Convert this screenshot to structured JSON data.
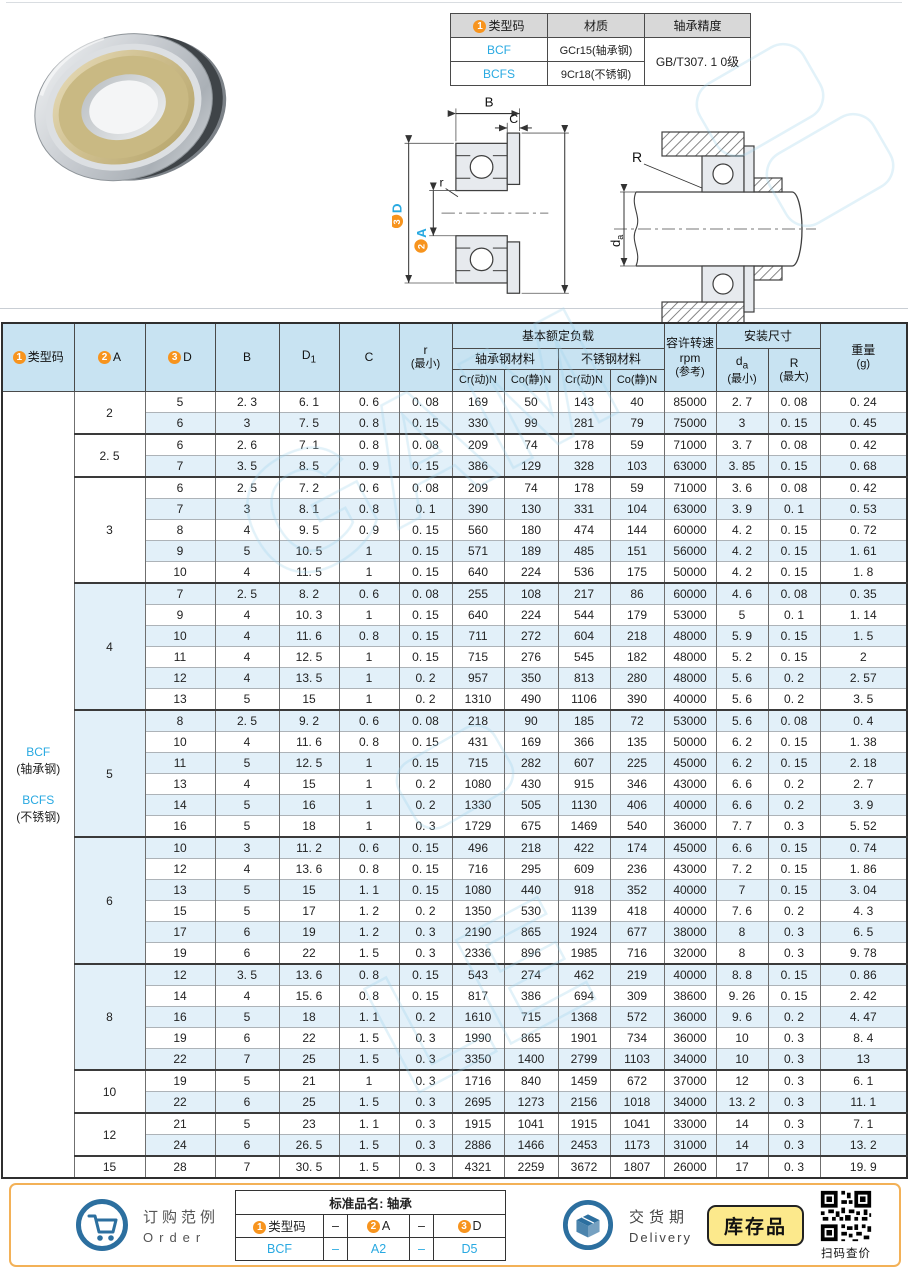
{
  "colors": {
    "accent_blue": "#29a9e1",
    "circle_orange": "#f7941e",
    "table_header_bg": "#c8e3f2",
    "row_alt_bg": "#e2f0f9",
    "footer_border": "#f3b157",
    "badge_bg": "#fce98c",
    "icon_blue": "#2c6f9f"
  },
  "spec_table": {
    "header": {
      "type_num": "1",
      "type_label": "类型码",
      "material_label": "材质",
      "precision_label": "轴承精度"
    },
    "rows": [
      {
        "code": "BCF",
        "material": "GCr15(轴承钢)"
      },
      {
        "code": "BCFS",
        "material": "9Cr18(不锈钢)"
      }
    ],
    "precision": "GB/T307. 1 0级"
  },
  "diagrams": {
    "left": {
      "b": "B",
      "c": "C",
      "r": "r",
      "d_num": "3",
      "d_label": "D",
      "a_num": "2",
      "a_label": "A",
      "d1_base": "D",
      "d1_sub": "1"
    },
    "right": {
      "R": "R",
      "da_base": "d",
      "da_sub": "a"
    }
  },
  "main_table": {
    "header": {
      "type_code": {
        "num": "1",
        "label": "类型码"
      },
      "a": {
        "num": "2",
        "label": "A"
      },
      "d": {
        "num": "3",
        "label": "D"
      },
      "b": "B",
      "d1": {
        "base": "D",
        "sub": "1"
      },
      "c": "C",
      "r": {
        "line1": "r",
        "line2": "(最小)"
      },
      "load_group": "基本额定负载",
      "steel": "轴承钢材料",
      "stainless": "不锈钢材料",
      "cr": "Cr(动)N",
      "co": "Co(静)N",
      "rpm": {
        "line1": "容许转速",
        "line2": "rpm",
        "line3": "(参考)"
      },
      "install": "安装尺寸",
      "da": {
        "base": "d",
        "sub": "a",
        "line2": "(最小)"
      },
      "R": {
        "line1": "R",
        "line2": "(最大)"
      },
      "weight": {
        "line1": "重量",
        "line2": "(g)"
      }
    },
    "type_codes": [
      {
        "code": "BCF",
        "material": "(轴承钢)"
      },
      {
        "code": "BCFS",
        "material": "(不锈钢)"
      }
    ],
    "groups": [
      {
        "a": "2",
        "rows": [
          [
            "5",
            "2. 3",
            "6. 1",
            "0. 6",
            "0. 08",
            "169",
            "50",
            "143",
            "40",
            "85000",
            "2. 7",
            "0. 08",
            "0. 24"
          ],
          [
            "6",
            "3",
            "7. 5",
            "0. 8",
            "0. 15",
            "330",
            "99",
            "281",
            "79",
            "75000",
            "3",
            "0. 15",
            "0. 45"
          ]
        ]
      },
      {
        "a": "2. 5",
        "rows": [
          [
            "6",
            "2. 6",
            "7. 1",
            "0. 8",
            "0. 08",
            "209",
            "74",
            "178",
            "59",
            "71000",
            "3. 7",
            "0. 08",
            "0. 42"
          ],
          [
            "7",
            "3. 5",
            "8. 5",
            "0. 9",
            "0. 15",
            "386",
            "129",
            "328",
            "103",
            "63000",
            "3. 85",
            "0. 15",
            "0. 68"
          ]
        ]
      },
      {
        "a": "3",
        "rows": [
          [
            "6",
            "2. 5",
            "7. 2",
            "0. 6",
            "0. 08",
            "209",
            "74",
            "178",
            "59",
            "71000",
            "3. 6",
            "0. 08",
            "0. 42"
          ],
          [
            "7",
            "3",
            "8. 1",
            "0. 8",
            "0. 1",
            "390",
            "130",
            "331",
            "104",
            "63000",
            "3. 9",
            "0. 1",
            "0. 53"
          ],
          [
            "8",
            "4",
            "9. 5",
            "0. 9",
            "0. 15",
            "560",
            "180",
            "474",
            "144",
            "60000",
            "4. 2",
            "0. 15",
            "0. 72"
          ],
          [
            "9",
            "5",
            "10. 5",
            "1",
            "0. 15",
            "571",
            "189",
            "485",
            "151",
            "56000",
            "4. 2",
            "0. 15",
            "1. 61"
          ],
          [
            "10",
            "4",
            "11. 5",
            "1",
            "0. 15",
            "640",
            "224",
            "536",
            "175",
            "50000",
            "4. 2",
            "0. 15",
            "1. 8"
          ]
        ]
      },
      {
        "a": "4",
        "rows": [
          [
            "7",
            "2. 5",
            "8. 2",
            "0. 6",
            "0. 08",
            "255",
            "108",
            "217",
            "86",
            "60000",
            "4. 6",
            "0. 08",
            "0. 35"
          ],
          [
            "9",
            "4",
            "10. 3",
            "1",
            "0. 15",
            "640",
            "224",
            "544",
            "179",
            "53000",
            "5",
            "0. 1",
            "1. 14"
          ],
          [
            "10",
            "4",
            "11. 6",
            "0. 8",
            "0. 15",
            "711",
            "272",
            "604",
            "218",
            "48000",
            "5. 9",
            "0. 15",
            "1. 5"
          ],
          [
            "11",
            "4",
            "12. 5",
            "1",
            "0. 15",
            "715",
            "276",
            "545",
            "182",
            "48000",
            "5. 2",
            "0. 15",
            "2"
          ],
          [
            "12",
            "4",
            "13. 5",
            "1",
            "0. 2",
            "957",
            "350",
            "813",
            "280",
            "48000",
            "5. 6",
            "0. 2",
            "2. 57"
          ],
          [
            "13",
            "5",
            "15",
            "1",
            "0. 2",
            "1310",
            "490",
            "1106",
            "390",
            "40000",
            "5. 6",
            "0. 2",
            "3. 5"
          ]
        ]
      },
      {
        "a": "5",
        "rows": [
          [
            "8",
            "2. 5",
            "9. 2",
            "0. 6",
            "0. 08",
            "218",
            "90",
            "185",
            "72",
            "53000",
            "5. 6",
            "0. 08",
            "0. 4"
          ],
          [
            "10",
            "4",
            "11. 6",
            "0. 8",
            "0. 15",
            "431",
            "169",
            "366",
            "135",
            "50000",
            "6. 2",
            "0. 15",
            "1. 38"
          ],
          [
            "11",
            "5",
            "12. 5",
            "1",
            "0. 15",
            "715",
            "282",
            "607",
            "225",
            "45000",
            "6. 2",
            "0. 15",
            "2. 18"
          ],
          [
            "13",
            "4",
            "15",
            "1",
            "0. 2",
            "1080",
            "430",
            "915",
            "346",
            "43000",
            "6. 6",
            "0. 2",
            "2. 7"
          ],
          [
            "14",
            "5",
            "16",
            "1",
            "0. 2",
            "1330",
            "505",
            "1130",
            "406",
            "40000",
            "6. 6",
            "0. 2",
            "3. 9"
          ],
          [
            "16",
            "5",
            "18",
            "1",
            "0. 3",
            "1729",
            "675",
            "1469",
            "540",
            "36000",
            "7. 7",
            "0. 3",
            "5. 52"
          ]
        ]
      },
      {
        "a": "6",
        "rows": [
          [
            "10",
            "3",
            "11. 2",
            "0. 6",
            "0. 15",
            "496",
            "218",
            "422",
            "174",
            "45000",
            "6. 6",
            "0. 15",
            "0. 74"
          ],
          [
            "12",
            "4",
            "13. 6",
            "0. 8",
            "0. 15",
            "716",
            "295",
            "609",
            "236",
            "43000",
            "7. 2",
            "0. 15",
            "1. 86"
          ],
          [
            "13",
            "5",
            "15",
            "1. 1",
            "0. 15",
            "1080",
            "440",
            "918",
            "352",
            "40000",
            "7",
            "0. 15",
            "3. 04"
          ],
          [
            "15",
            "5",
            "17",
            "1. 2",
            "0. 2",
            "1350",
            "530",
            "1139",
            "418",
            "40000",
            "7. 6",
            "0. 2",
            "4. 3"
          ],
          [
            "17",
            "6",
            "19",
            "1. 2",
            "0. 3",
            "2190",
            "865",
            "1924",
            "677",
            "38000",
            "8",
            "0. 3",
            "6. 5"
          ],
          [
            "19",
            "6",
            "22",
            "1. 5",
            "0. 3",
            "2336",
            "896",
            "1985",
            "716",
            "32000",
            "8",
            "0. 3",
            "9. 78"
          ]
        ]
      },
      {
        "a": "8",
        "rows": [
          [
            "12",
            "3. 5",
            "13. 6",
            "0. 8",
            "0. 15",
            "543",
            "274",
            "462",
            "219",
            "40000",
            "8. 8",
            "0. 15",
            "0. 86"
          ],
          [
            "14",
            "4",
            "15. 6",
            "0. 8",
            "0. 15",
            "817",
            "386",
            "694",
            "309",
            "38600",
            "9. 26",
            "0. 15",
            "2. 42"
          ],
          [
            "16",
            "5",
            "18",
            "1. 1",
            "0. 2",
            "1610",
            "715",
            "1368",
            "572",
            "36000",
            "9. 6",
            "0. 2",
            "4. 47"
          ],
          [
            "19",
            "6",
            "22",
            "1. 5",
            "0. 3",
            "1990",
            "865",
            "1901",
            "734",
            "36000",
            "10",
            "0. 3",
            "8. 4"
          ],
          [
            "22",
            "7",
            "25",
            "1. 5",
            "0. 3",
            "3350",
            "1400",
            "2799",
            "1103",
            "34000",
            "10",
            "0. 3",
            "13"
          ]
        ]
      },
      {
        "a": "10",
        "rows": [
          [
            "19",
            "5",
            "21",
            "1",
            "0. 3",
            "1716",
            "840",
            "1459",
            "672",
            "37000",
            "12",
            "0. 3",
            "6. 1"
          ],
          [
            "22",
            "6",
            "25",
            "1. 5",
            "0. 3",
            "2695",
            "1273",
            "2156",
            "1018",
            "34000",
            "13. 2",
            "0. 3",
            "11. 1"
          ]
        ]
      },
      {
        "a": "12",
        "rows": [
          [
            "21",
            "5",
            "23",
            "1. 1",
            "0. 3",
            "1915",
            "1041",
            "1915",
            "1041",
            "33000",
            "14",
            "0. 3",
            "7. 1"
          ],
          [
            "24",
            "6",
            "26. 5",
            "1. 5",
            "0. 3",
            "2886",
            "1466",
            "2453",
            "1173",
            "31000",
            "14",
            "0. 3",
            "13. 2"
          ]
        ]
      },
      {
        "a": "15",
        "rows": [
          [
            "28",
            "7",
            "30. 5",
            "1. 5",
            "0. 3",
            "4321",
            "2259",
            "3672",
            "1807",
            "26000",
            "17",
            "0. 3",
            "19. 9"
          ]
        ]
      }
    ]
  },
  "footer": {
    "order": {
      "title_cn": "订购范例",
      "title_en": "Order",
      "table_title": "标准品名: 轴承",
      "col1": {
        "num": "1",
        "label": "类型码"
      },
      "dash1": "–",
      "col2": {
        "num": "2",
        "label": "A"
      },
      "dash2": "–",
      "col3": {
        "num": "3",
        "label": "D"
      },
      "example": {
        "code": "BCF",
        "dash1": "–",
        "a": "A2",
        "dash2": "–",
        "d": "D5"
      }
    },
    "delivery": {
      "title_cn": "交货期",
      "title_en": "Delivery",
      "badge": "库存品",
      "qr_caption": "扫码查价"
    }
  }
}
